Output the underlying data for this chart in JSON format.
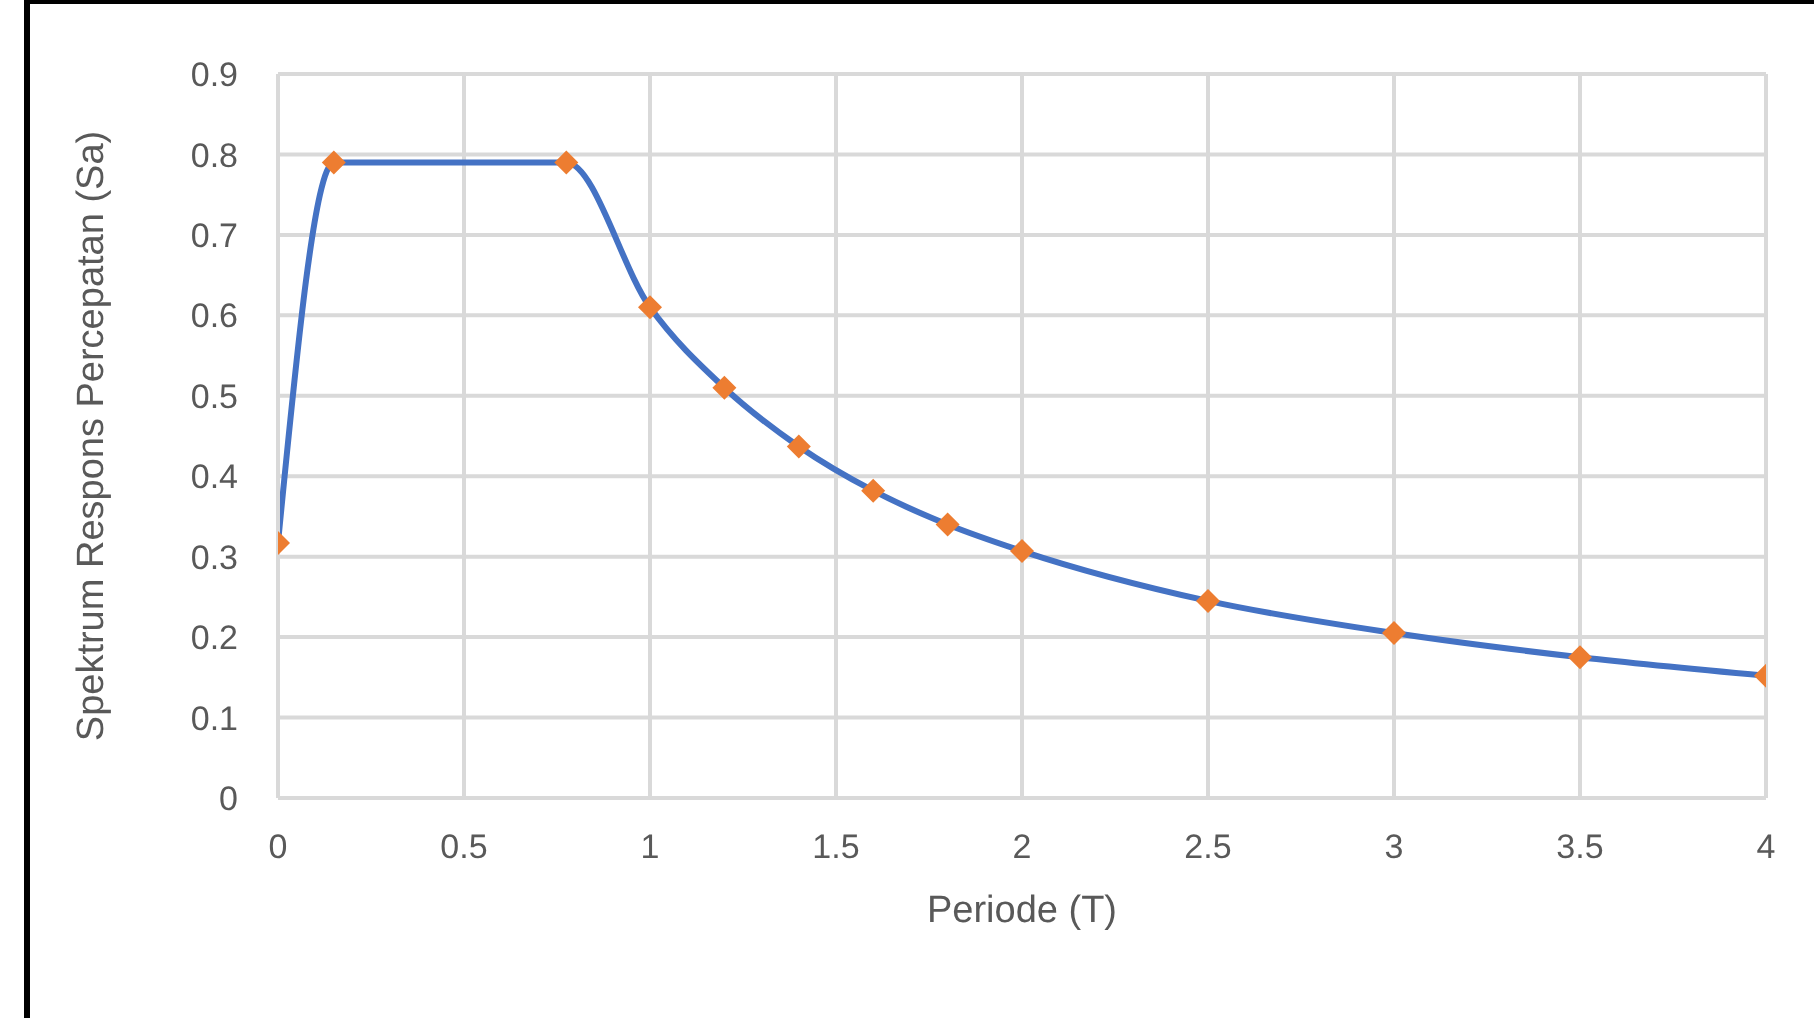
{
  "chart_data": {
    "type": "line",
    "xlabel": "Periode (T)",
    "ylabel": "Spektrum Respons Percepatan (Sa)",
    "x": [
      0,
      0.15,
      0.775,
      1,
      1.2,
      1.4,
      1.6,
      1.8,
      2,
      2.5,
      3,
      3.5,
      4
    ],
    "series": [
      {
        "color": "#4472c4",
        "colors": [
          "#ed7d31",
          "#ed7d31",
          "#ed7d31",
          "#ed7d31",
          "#ed7d31",
          "#ed7d31",
          "#ed7d31",
          "#ed7d31",
          "#ed7d31",
          "#ed7d31",
          "#ed7d31",
          "#ed7d31",
          "#ed7d31"
        ],
        "values": [
          0.317,
          0.79,
          0.79,
          0.61,
          0.51,
          0.437,
          0.382,
          0.34,
          0.307,
          0.245,
          0.205,
          0.175,
          0.152
        ]
      }
    ],
    "xlim": [
      0,
      4
    ],
    "xticks": [
      0,
      0.5,
      1,
      1.5,
      2,
      2.5,
      3,
      3.5,
      4
    ],
    "ylim": [
      0,
      0.9
    ],
    "yticks": [
      0,
      0.1,
      0.2,
      0.3,
      0.4,
      0.5,
      0.6,
      0.7,
      0.8,
      0.9
    ],
    "grid": true,
    "marker": "diamond",
    "line_style": "solid"
  }
}
